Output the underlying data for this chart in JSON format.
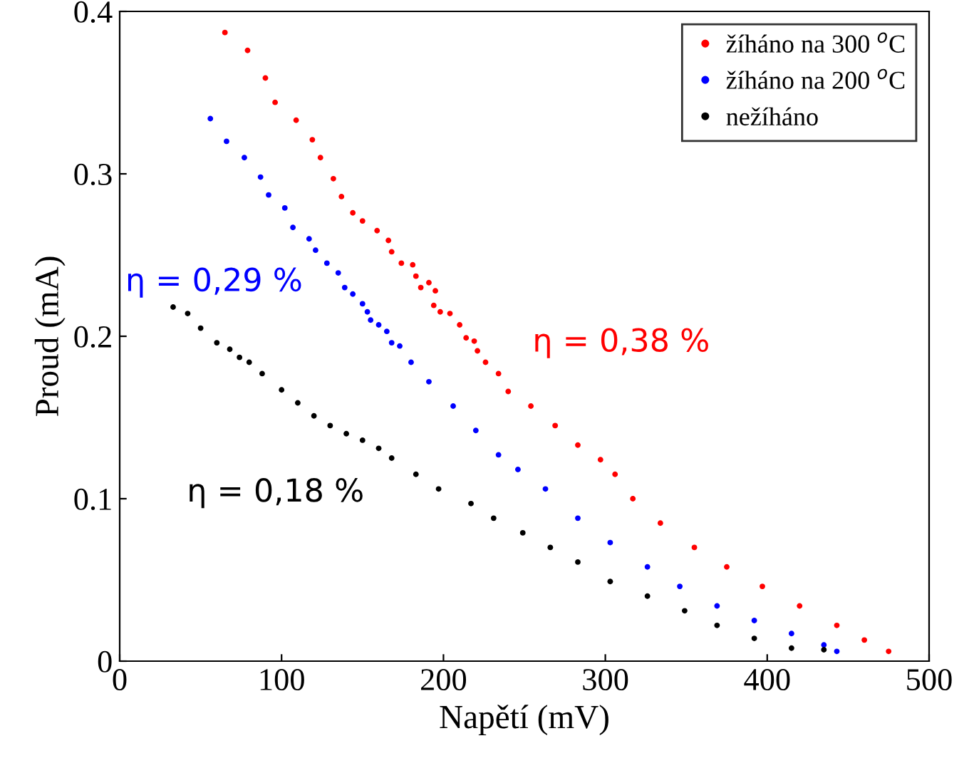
{
  "chart_data": {
    "type": "scatter",
    "xlabel": "Napětí (mV)",
    "ylabel": "Proud (mA)",
    "xlim": [
      0,
      500
    ],
    "ylim": [
      0,
      0.4
    ],
    "xticks": [
      0,
      100,
      200,
      300,
      400,
      500
    ],
    "yticks": [
      0,
      0.1,
      0.2,
      0.3,
      0.4
    ],
    "grid": false,
    "legend": "top right",
    "marker": "circle",
    "series": [
      {
        "name": "žíháno na 300 $^{o}$C",
        "color": "#ff0000",
        "x": [
          65,
          79,
          90,
          96,
          109,
          119,
          124,
          132,
          137,
          144,
          150,
          159,
          166,
          168,
          174,
          181,
          183,
          186,
          191,
          195,
          194,
          198,
          204,
          210,
          214,
          219,
          221,
          226,
          234,
          240,
          254,
          269,
          283,
          297,
          306,
          317,
          334,
          355,
          375,
          397,
          420,
          443,
          460,
          475
        ],
        "values": [
          0.387,
          0.376,
          0.359,
          0.344,
          0.333,
          0.321,
          0.31,
          0.297,
          0.286,
          0.276,
          0.271,
          0.265,
          0.259,
          0.252,
          0.245,
          0.244,
          0.237,
          0.23,
          0.233,
          0.228,
          0.219,
          0.215,
          0.214,
          0.207,
          0.199,
          0.197,
          0.191,
          0.184,
          0.177,
          0.166,
          0.157,
          0.145,
          0.133,
          0.124,
          0.115,
          0.1,
          0.085,
          0.07,
          0.058,
          0.046,
          0.034,
          0.022,
          0.013,
          0.006
        ]
      },
      {
        "name": "žíháno na 200 $^{o}$C",
        "color": "#0000ff",
        "x": [
          56,
          66,
          77,
          87,
          92,
          102,
          107,
          117,
          121,
          128,
          135,
          139,
          144,
          150,
          153,
          155,
          160,
          165,
          168,
          173,
          180,
          191,
          206,
          220,
          234,
          246,
          263,
          283,
          303,
          326,
          346,
          369,
          392,
          415,
          435,
          443
        ],
        "values": [
          0.334,
          0.32,
          0.31,
          0.298,
          0.287,
          0.279,
          0.267,
          0.26,
          0.253,
          0.245,
          0.239,
          0.23,
          0.226,
          0.22,
          0.215,
          0.21,
          0.207,
          0.203,
          0.196,
          0.194,
          0.184,
          0.172,
          0.157,
          0.142,
          0.127,
          0.118,
          0.106,
          0.088,
          0.073,
          0.058,
          0.046,
          0.034,
          0.025,
          0.017,
          0.01,
          0.006
        ]
      },
      {
        "name": "nežíháno",
        "color": "#000000",
        "x": [
          33,
          42,
          50,
          60,
          68,
          74,
          80,
          88,
          100,
          110,
          120,
          130,
          140,
          150,
          160,
          168,
          183,
          197,
          217,
          231,
          249,
          266,
          283,
          303,
          326,
          349,
          369,
          392,
          415,
          435
        ],
        "values": [
          0.218,
          0.214,
          0.205,
          0.196,
          0.192,
          0.187,
          0.184,
          0.177,
          0.167,
          0.159,
          0.151,
          0.145,
          0.14,
          0.136,
          0.131,
          0.125,
          0.115,
          0.106,
          0.097,
          0.088,
          0.079,
          0.07,
          0.061,
          0.049,
          0.04,
          0.031,
          0.022,
          0.014,
          0.008,
          0.007
        ]
      }
    ],
    "annotations": [
      "η = 0,38 %",
      "η = 0,29 %",
      "η = 0,18 %"
    ]
  }
}
